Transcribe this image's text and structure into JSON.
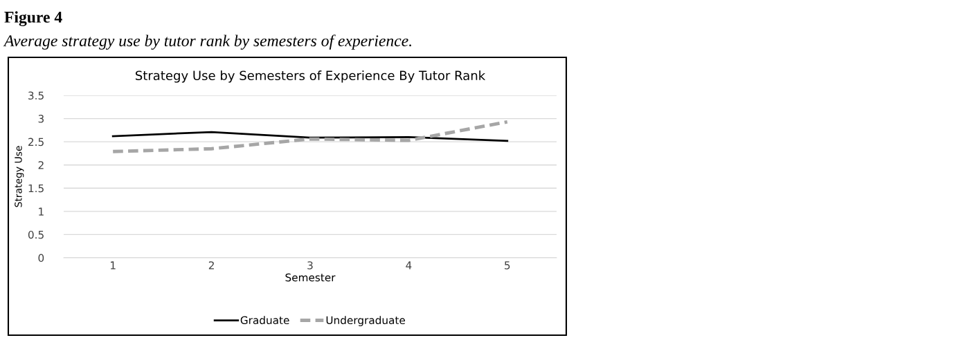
{
  "chart_data": {
    "type": "line",
    "title": "Strategy Use by Semesters of Experience By Tutor Rank",
    "annotations": [
      "Figure 4",
      "Average strategy use by tutor rank by semesters of experience."
    ],
    "xlabel": "Semester",
    "ylabel": "Strategy Use",
    "categories": [
      "1",
      "2",
      "3",
      "4",
      "5"
    ],
    "series": [
      {
        "name": "Graduate",
        "color": "#000000",
        "line_style": "solid",
        "values": [
          2.62,
          2.71,
          2.59,
          2.6,
          2.52
        ]
      },
      {
        "name": "Undergraduate",
        "color": "#a6a6a6",
        "line_style": "dashed",
        "values": [
          2.29,
          2.35,
          2.56,
          2.53,
          2.93
        ]
      }
    ],
    "ylim": [
      0,
      3.5
    ],
    "yticks": [
      0,
      0.5,
      1,
      1.5,
      2,
      2.5,
      3,
      3.5
    ],
    "grid": "y",
    "legend": "bottom",
    "marker": "none"
  }
}
